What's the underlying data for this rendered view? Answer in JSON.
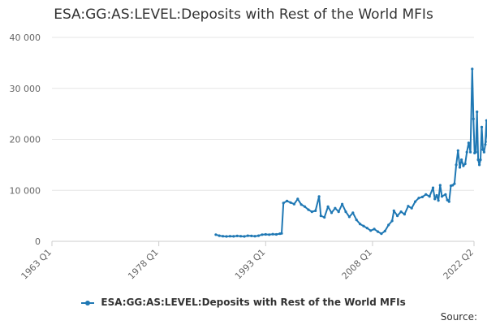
{
  "chart_data": {
    "type": "line",
    "title": "ESA:GG:AS:LEVEL:Deposits with Rest of the World MFIs",
    "xlabel": "",
    "ylabel": "",
    "x_tick_labels": [
      "1963 Q1",
      "1978 Q1",
      "1993 Q1",
      "2008 Q1",
      "2022 Q2"
    ],
    "xlim": [
      "1963 Q1",
      "2022 Q2"
    ],
    "ylim": [
      0,
      40000
    ],
    "y_tick_labels": [
      "0",
      "10 000",
      "20 000",
      "30 000",
      "40 000"
    ],
    "y_ticks": [
      0,
      10000,
      20000,
      30000,
      40000
    ],
    "grid": true,
    "legend_position": "bottom",
    "series": [
      {
        "name": "ESA:GG:AS:LEVEL:Deposits with Rest of the World MFIs",
        "color": "#1f78b4",
        "points": [
          [
            "1986-01-01",
            1300
          ],
          [
            "1986-07-01",
            1100
          ],
          [
            "1987-01-01",
            1000
          ],
          [
            "1987-07-01",
            950
          ],
          [
            "1988-01-01",
            1000
          ],
          [
            "1988-07-01",
            980
          ],
          [
            "1989-01-01",
            1050
          ],
          [
            "1989-07-01",
            1000
          ],
          [
            "1990-01-01",
            950
          ],
          [
            "1990-07-01",
            1100
          ],
          [
            "1991-01-01",
            1050
          ],
          [
            "1991-07-01",
            1000
          ],
          [
            "1992-01-01",
            1100
          ],
          [
            "1992-07-01",
            1300
          ],
          [
            "1993-01-01",
            1350
          ],
          [
            "1993-07-01",
            1300
          ],
          [
            "1994-01-01",
            1400
          ],
          [
            "1994-07-01",
            1350
          ],
          [
            "1995-01-01",
            1500
          ],
          [
            "1995-04-01",
            1550
          ],
          [
            "1995-07-01",
            7500
          ],
          [
            "1996-01-01",
            7900
          ],
          [
            "1996-07-01",
            7600
          ],
          [
            "1997-01-01",
            7300
          ],
          [
            "1997-07-01",
            8300
          ],
          [
            "1998-01-01",
            7200
          ],
          [
            "1998-07-01",
            6800
          ],
          [
            "1999-01-01",
            6200
          ],
          [
            "1999-07-01",
            5800
          ],
          [
            "2000-01-01",
            6000
          ],
          [
            "2000-07-01",
            8800
          ],
          [
            "2000-10-01",
            5000
          ],
          [
            "2001-04-01",
            4700
          ],
          [
            "2001-10-01",
            6800
          ],
          [
            "2002-04-01",
            5600
          ],
          [
            "2002-10-01",
            6500
          ],
          [
            "2003-04-01",
            5800
          ],
          [
            "2003-10-01",
            7300
          ],
          [
            "2004-04-01",
            5800
          ],
          [
            "2004-10-01",
            4800
          ],
          [
            "2005-04-01",
            5600
          ],
          [
            "2005-10-01",
            4200
          ],
          [
            "2006-04-01",
            3400
          ],
          [
            "2006-10-01",
            3000
          ],
          [
            "2007-04-01",
            2600
          ],
          [
            "2007-10-01",
            2100
          ],
          [
            "2008-04-01",
            2400
          ],
          [
            "2008-10-01",
            1900
          ],
          [
            "2009-04-01",
            1500
          ],
          [
            "2009-10-01",
            2000
          ],
          [
            "2010-04-01",
            3200
          ],
          [
            "2010-10-01",
            4000
          ],
          [
            "2011-01-01",
            6000
          ],
          [
            "2011-07-01",
            5000
          ],
          [
            "2012-01-01",
            5800
          ],
          [
            "2012-07-01",
            5300
          ],
          [
            "2013-01-01",
            6900
          ],
          [
            "2013-07-01",
            6500
          ],
          [
            "2014-01-01",
            7800
          ],
          [
            "2014-07-01",
            8500
          ],
          [
            "2015-01-01",
            8700
          ],
          [
            "2015-07-01",
            9200
          ],
          [
            "2016-01-01",
            8800
          ],
          [
            "2016-07-01",
            10500
          ],
          [
            "2016-10-01",
            8300
          ],
          [
            "2017-01-01",
            9000
          ],
          [
            "2017-04-01",
            8000
          ],
          [
            "2017-07-01",
            11000
          ],
          [
            "2017-10-01",
            8800
          ],
          [
            "2018-04-01",
            9200
          ],
          [
            "2018-07-01",
            8100
          ],
          [
            "2018-10-01",
            7800
          ],
          [
            "2019-01-01",
            10900
          ],
          [
            "2019-04-01",
            11000
          ],
          [
            "2019-07-01",
            11300
          ],
          [
            "2019-10-01",
            15000
          ],
          [
            "2020-01-01",
            17800
          ],
          [
            "2020-04-01",
            14500
          ],
          [
            "2020-07-01",
            16000
          ],
          [
            "2020-10-01",
            14800
          ],
          [
            "2021-01-01",
            15200
          ],
          [
            "2021-04-01",
            17500
          ],
          [
            "2021-07-01",
            19300
          ],
          [
            "2021-10-01",
            17500
          ],
          [
            "2022-01-01",
            33800
          ],
          [
            "2022-03-01",
            24000
          ],
          [
            "2022-05-01",
            17300
          ],
          [
            "2022-07-01",
            17500
          ],
          [
            "2022-09-01",
            25400
          ],
          [
            "2022-11-01",
            16000
          ],
          [
            "2023-01-01",
            15000
          ],
          [
            "2023-03-01",
            16000
          ],
          [
            "2023-05-01",
            22400
          ],
          [
            "2023-07-01",
            18000
          ],
          [
            "2023-09-01",
            17500
          ],
          [
            "2023-11-01",
            19000
          ],
          [
            "2024-01-01",
            23700
          ],
          [
            "2024-03-01",
            19500
          ],
          [
            "2024-05-01",
            21800
          ]
        ]
      }
    ]
  },
  "legend": {
    "label": "ESA:GG:AS:LEVEL:Deposits with Rest of the World MFIs"
  },
  "footer": {
    "source": "Source:"
  }
}
